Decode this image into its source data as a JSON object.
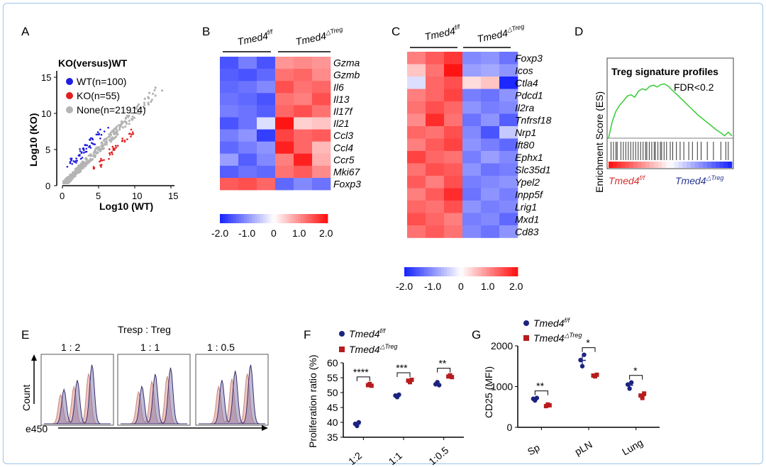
{
  "panels": {
    "A": {
      "letter": "A",
      "title": "KO(versus)WT",
      "xlabel": "Log10 (WT)",
      "ylabel": "Log10 (KO)",
      "xticks": [
        "0",
        "5",
        "10",
        "15"
      ],
      "yticks": [
        "0",
        "5",
        "10",
        "15"
      ],
      "legend": [
        {
          "label": "WT(n=100)",
          "color": "#1f1fe0"
        },
        {
          "label": "KO(n=55)",
          "color": "#e02020"
        },
        {
          "label": "None(n=21914)",
          "color": "#b4b4b4"
        }
      ]
    },
    "B": {
      "letter": "B",
      "group1": "Tmed4",
      "group1_sup": "f/f",
      "group2": "Tmed4",
      "group2_sup": "△Treg",
      "genes": [
        "Gzma",
        "Gzmb",
        "Il6",
        "Il13",
        "Il17f",
        "Il21",
        "Ccl3",
        "Ccl4",
        "Ccr5",
        "Mki67",
        "Foxp3"
      ],
      "scale_ticks": [
        "-2.0",
        "-1.0",
        "0",
        "1.0",
        "2.0"
      ],
      "values": [
        [
          -1.6,
          -1.2,
          -1.6,
          0.9,
          1.0,
          0.9
        ],
        [
          -1.5,
          -1.6,
          -1.4,
          1.2,
          1.3,
          1.0
        ],
        [
          -1.4,
          -1.3,
          -1.1,
          1.5,
          1.2,
          1.3
        ],
        [
          -1.3,
          -1.4,
          -1.6,
          1.2,
          1.1,
          1.5
        ],
        [
          -1.2,
          -1.3,
          -1.5,
          1.3,
          1.5,
          1.2
        ],
        [
          -1.6,
          -1.3,
          -0.3,
          2.0,
          0.4,
          0.5
        ],
        [
          -1.2,
          -1.0,
          -1.8,
          1.6,
          1.3,
          1.4
        ],
        [
          -1.4,
          -1.2,
          -1.0,
          1.9,
          1.3,
          0.6
        ],
        [
          -0.9,
          -1.5,
          -1.1,
          1.1,
          1.9,
          0.7
        ],
        [
          -1.5,
          -1.3,
          -1.4,
          1.2,
          1.4,
          1.0
        ],
        [
          1.4,
          1.5,
          1.3,
          -1.4,
          -1.1,
          -1.3
        ]
      ]
    },
    "C": {
      "letter": "C",
      "group1": "Tmed4",
      "group1_sup": "f/f",
      "group2": "Tmed4",
      "group2_sup": "△Treg",
      "genes": [
        "Foxp3",
        "Icos",
        "Ctla4",
        "Pdcd1",
        "Il2ra",
        "Tnfrsf18",
        "Nrp1",
        "Ift80",
        "Ephx1",
        "Slc35d1",
        "Ypel2",
        "Inpp5f",
        "Lrig1",
        "Mxd1",
        "Cd83"
      ],
      "scale_ticks": [
        "-2.0",
        "-1.0",
        "0",
        "1.0",
        "2.0"
      ],
      "values": [
        [
          1.1,
          1.4,
          1.7,
          -1.1,
          -1.0,
          -1.3
        ],
        [
          0.5,
          1.2,
          2.0,
          -0.9,
          -0.8,
          -1.0
        ],
        [
          -0.3,
          1.3,
          1.5,
          0.3,
          0.5,
          -2.0
        ],
        [
          1.1,
          1.3,
          1.6,
          -1.2,
          -1.3,
          -1.0
        ],
        [
          1.2,
          1.5,
          1.3,
          -1.0,
          -1.2,
          -1.1
        ],
        [
          1.0,
          1.8,
          1.2,
          -1.3,
          -1.0,
          -1.5
        ],
        [
          1.3,
          1.2,
          1.5,
          -1.1,
          -1.6,
          -0.5
        ],
        [
          1.1,
          1.4,
          1.6,
          -1.0,
          -1.2,
          -1.4
        ],
        [
          1.6,
          1.3,
          1.2,
          -1.2,
          -0.9,
          -1.1
        ],
        [
          1.2,
          1.5,
          1.4,
          -1.0,
          -1.3,
          -1.2
        ],
        [
          1.4,
          1.1,
          1.5,
          -1.2,
          -1.1,
          -1.0
        ],
        [
          1.1,
          1.4,
          1.8,
          -1.3,
          -1.0,
          -1.2
        ],
        [
          1.3,
          1.2,
          1.5,
          -1.0,
          -1.2,
          -1.1
        ],
        [
          1.5,
          1.3,
          1.1,
          -1.2,
          -1.1,
          -1.4
        ],
        [
          1.2,
          1.4,
          1.2,
          -1.1,
          -1.3,
          -1.0
        ]
      ]
    },
    "D": {
      "letter": "D",
      "title": "Treg signature profiles",
      "fdr": "FDR<0.2",
      "ylabel": "Enrichment Score (ES)",
      "left_label": "Tmed4",
      "left_sup": "f/f",
      "right_label": "Tmed4",
      "right_sup": "△Treg",
      "es_curve": [
        0,
        0.28,
        0.45,
        0.55,
        0.62,
        0.7,
        0.72,
        0.68,
        0.78,
        0.82,
        0.8,
        0.86,
        0.88,
        0.85,
        0.89,
        0.9,
        0.86,
        0.8,
        0.74,
        0.68,
        0.62,
        0.56,
        0.5,
        0.44,
        0.38,
        0.33,
        0.28,
        0.23,
        0.18,
        0.13,
        0.09,
        0.04,
        0.1,
        0.04
      ],
      "hit_ranks": [
        0.02,
        0.04,
        0.06,
        0.07,
        0.1,
        0.12,
        0.14,
        0.16,
        0.18,
        0.2,
        0.22,
        0.24,
        0.26,
        0.28,
        0.3,
        0.31,
        0.33,
        0.35,
        0.37,
        0.38,
        0.4,
        0.42,
        0.43,
        0.45,
        0.47,
        0.5,
        0.52,
        0.55,
        0.58,
        0.61,
        0.65,
        0.68,
        0.72,
        0.75,
        0.8,
        0.85,
        0.91,
        0.95,
        0.97
      ]
    },
    "E": {
      "letter": "E",
      "header": "Tresp  :  Treg",
      "ratios": [
        "1 : 2",
        "1 : 1",
        "1 : 0.5"
      ],
      "ylabel": "Count",
      "xlabel": "e450"
    },
    "F": {
      "letter": "F",
      "ylabel": "Proliferation ratio (%)",
      "legend": [
        {
          "label": "Tmed4",
          "sup": "f/f",
          "color": "#1a237e"
        },
        {
          "label": "Tmed4",
          "sup": "△Treg",
          "color": "#b71c1c"
        }
      ]
    },
    "G": {
      "letter": "G",
      "ylabel": "CD25 (MFI)",
      "legend": [
        {
          "label": "Tmed4",
          "sup": "f/f",
          "color": "#1a237e"
        },
        {
          "label": "Tmed4",
          "sup": "△Treg",
          "color": "#b71c1c"
        }
      ]
    }
  },
  "chart_data": [
    {
      "id": "F",
      "type": "scatter",
      "categories": [
        "1:2",
        "1:1",
        "1:0.5"
      ],
      "ylabel": "Proliferation ratio (%)",
      "ylim": [
        35,
        60
      ],
      "yticks": [
        35,
        40,
        45,
        50,
        55,
        60
      ],
      "series": [
        {
          "name": "Tmed4 f/f",
          "color": "#1a237e",
          "points": [
            [
              39.5,
              38.8,
              40.0
            ],
            [
              49.0,
              48.5,
              49.3
            ],
            [
              52.8,
              53.5,
              52.5
            ]
          ],
          "mean": [
            39.4,
            48.9,
            52.9
          ]
        },
        {
          "name": "Tmed4 △Treg",
          "color": "#b71c1c",
          "points": [
            [
              52.5,
              52.9,
              52.3
            ],
            [
              54.0,
              53.5,
              54.3
            ],
            [
              55.4,
              55.8,
              55.2
            ]
          ],
          "mean": [
            52.6,
            53.9,
            55.5
          ]
        }
      ],
      "significance": [
        "****",
        "***",
        "**"
      ]
    },
    {
      "id": "G",
      "type": "scatter",
      "categories": [
        "Sp",
        "pLN",
        "Lung"
      ],
      "ylabel": "CD25 (MFI)",
      "ylim": [
        0,
        2000
      ],
      "yticks": [
        0,
        1000,
        2000
      ],
      "series": [
        {
          "name": "Tmed4 f/f",
          "color": "#1a237e",
          "points": [
            [
              700,
              660,
              720
            ],
            [
              1650,
              1500,
              1780
            ],
            [
              1050,
              950,
              1100
            ]
          ],
          "mean": [
            693,
            1643,
            1033
          ]
        },
        {
          "name": "Tmed4 △Treg",
          "color": "#b71c1c",
          "points": [
            [
              520,
              560,
              540
            ],
            [
              1270,
              1250,
              1290
            ],
            [
              780,
              720,
              830
            ]
          ],
          "mean": [
            540,
            1270,
            777
          ]
        }
      ],
      "significance": [
        "**",
        "*",
        "*"
      ]
    }
  ]
}
